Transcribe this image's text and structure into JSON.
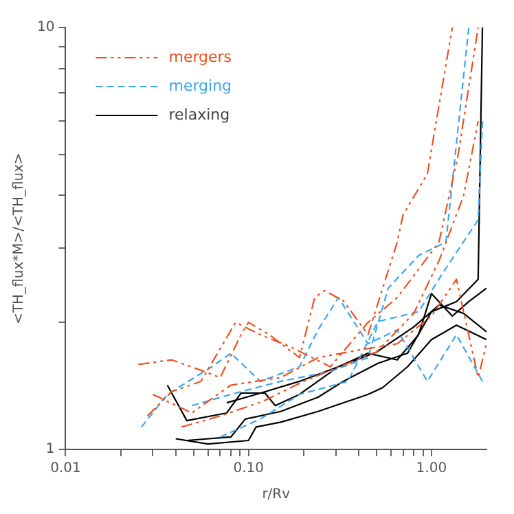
{
  "chart_data": {
    "type": "line",
    "xlabel": "r/Rv",
    "ylabel": "<TH_flux*M>/<TH_flux>",
    "log": "xy",
    "grid": false,
    "legend": "top left",
    "xlim": [
      0.01,
      2
    ],
    "ylim": [
      1,
      10
    ],
    "xticks": [
      {
        "value": 0.01,
        "label": "0.01"
      },
      {
        "value": 0.02,
        "label": null
      },
      {
        "value": 0.03,
        "label": null
      },
      {
        "value": 0.04,
        "label": null
      },
      {
        "value": 0.05,
        "label": null
      },
      {
        "value": 0.06,
        "label": null
      },
      {
        "value": 0.07,
        "label": null
      },
      {
        "value": 0.08,
        "label": null
      },
      {
        "value": 0.09,
        "label": null
      },
      {
        "value": 0.1,
        "label": "0.10"
      },
      {
        "value": 0.2,
        "label": null
      },
      {
        "value": 0.3,
        "label": null
      },
      {
        "value": 0.4,
        "label": null
      },
      {
        "value": 0.5,
        "label": null
      },
      {
        "value": 0.6,
        "label": null
      },
      {
        "value": 0.7,
        "label": null
      },
      {
        "value": 0.8,
        "label": null
      },
      {
        "value": 0.9,
        "label": null
      },
      {
        "value": 1,
        "label": "1.00"
      }
    ],
    "yticks": [
      1,
      {
        "value": 2,
        "label": null
      },
      {
        "value": 3,
        "label": null
      },
      {
        "value": 4,
        "label": null
      },
      {
        "value": 5,
        "label": null
      },
      {
        "value": 6,
        "label": null
      },
      {
        "value": 7,
        "label": null
      },
      {
        "value": 8,
        "label": null
      },
      {
        "value": 9,
        "label": null
      },
      10
    ],
    "series": [
      {
        "name": "mergers",
        "color": "#f0501e",
        "line_style": "dashdotdot",
        "x": [
          0.025,
          0.038,
          0.055,
          0.07,
          0.091,
          0.1,
          0.13,
          0.19,
          0.23,
          0.26,
          0.33,
          0.45,
          0.65,
          0.7,
          0.95,
          1.3
        ],
        "values": [
          1.59,
          1.63,
          1.54,
          1.48,
          1.87,
          2.0,
          1.87,
          1.65,
          2.29,
          2.38,
          2.25,
          1.87,
          3.1,
          3.6,
          4.5,
          10
        ]
      },
      {
        "color": "#f0501e",
        "line_style": "dashdotdot",
        "x": [
          0.028,
          0.038,
          0.055,
          0.085,
          0.116,
          0.17,
          0.28,
          0.45,
          0.65,
          1.1,
          1.4,
          1.8
        ],
        "values": [
          1.2,
          1.37,
          1.45,
          2.0,
          1.87,
          1.75,
          1.57,
          2.0,
          2.29,
          3.1,
          5,
          10
        ]
      },
      {
        "color": "#f0501e",
        "line_style": "dashdotdot",
        "x": [
          0.03,
          0.049,
          0.08,
          0.15,
          0.24,
          0.4,
          0.65,
          1.0,
          1.37,
          1.8,
          2.0
        ],
        "values": [
          1.35,
          1.22,
          1.42,
          1.48,
          1.65,
          1.72,
          1.78,
          2.07,
          2.53,
          1.48,
          1.78
        ]
      },
      {
        "color": "#f0501e",
        "line_style": "dashdotdot",
        "x": [
          0.043,
          0.07,
          0.12,
          0.2,
          0.35,
          0.5,
          0.8,
          1.1,
          1.5,
          1.8
        ],
        "values": [
          1.13,
          1.2,
          1.3,
          1.45,
          1.6,
          1.7,
          2.1,
          2.8,
          4,
          6
        ]
      },
      {
        "name": "merging",
        "color": "#3aa6f0",
        "line_style": "dashed",
        "x": [
          0.026,
          0.036,
          0.063,
          0.08,
          0.116,
          0.19,
          0.24,
          0.31,
          0.45,
          0.65,
          0.95,
          1.37,
          1.9
        ],
        "values": [
          1.13,
          1.35,
          1.57,
          1.69,
          1.45,
          1.57,
          1.92,
          2.29,
          1.78,
          1.92,
          1.45,
          1.87,
          1.45
        ]
      },
      {
        "color": "#3aa6f0",
        "line_style": "dashed",
        "x": [
          0.049,
          0.08,
          0.15,
          0.28,
          0.45,
          0.58,
          0.85,
          1.2,
          1.6
        ],
        "values": [
          1.27,
          1.35,
          1.45,
          1.53,
          1.65,
          2.41,
          2.88,
          3.1,
          10
        ]
      },
      {
        "color": "#3aa6f0",
        "line_style": "dashed",
        "x": [
          0.07,
          0.116,
          0.19,
          0.35,
          0.51,
          0.85,
          1.14,
          1.8,
          1.9
        ],
        "values": [
          1.07,
          1.18,
          1.35,
          1.45,
          2.01,
          2.12,
          2.6,
          3.5,
          6
        ]
      },
      {
        "name": "relaxing",
        "color": "#000000",
        "line_style": "solid",
        "x": [
          0.036,
          0.046,
          0.076,
          0.091,
          0.123,
          0.14,
          0.19,
          0.31,
          0.45,
          0.65,
          0.85,
          1.0,
          1.3,
          1.6,
          2.0
        ],
        "values": [
          1.42,
          1.17,
          1.22,
          1.36,
          1.36,
          1.27,
          1.35,
          1.57,
          1.69,
          1.63,
          1.87,
          2.34,
          2.07,
          2.24,
          2.41
        ]
      },
      {
        "color": "#000000",
        "line_style": "solid",
        "x": [
          0.04,
          0.06,
          0.1,
          0.11,
          0.15,
          0.24,
          0.45,
          0.54,
          0.74,
          1.0,
          1.37,
          2.0
        ],
        "values": [
          1.06,
          1.03,
          1.05,
          1.13,
          1.16,
          1.23,
          1.35,
          1.4,
          1.57,
          1.82,
          1.97,
          1.82
        ]
      },
      {
        "color": "#000000",
        "line_style": "solid",
        "x": [
          0.046,
          0.08,
          0.096,
          0.15,
          0.24,
          0.33,
          0.51,
          0.74,
          1.0,
          1.37,
          1.8,
          1.9
        ],
        "values": [
          1.05,
          1.07,
          1.18,
          1.23,
          1.33,
          1.45,
          1.6,
          1.69,
          2.12,
          2.24,
          2.53,
          10
        ]
      },
      {
        "color": "#000000",
        "line_style": "solid",
        "x": [
          0.076,
          0.11,
          0.19,
          0.31,
          0.5,
          0.8,
          1.1,
          1.5,
          2.0
        ],
        "values": [
          1.29,
          1.35,
          1.45,
          1.57,
          1.7,
          1.95,
          2.2,
          2.1,
          1.9
        ]
      }
    ]
  }
}
